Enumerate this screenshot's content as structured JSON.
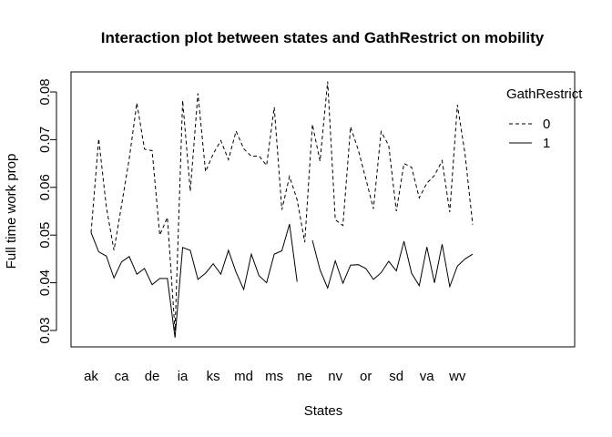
{
  "chart_data": {
    "type": "line",
    "title": "Interaction plot between states and GathRestrict on mobility",
    "xlabel": "States",
    "ylabel": "Full time work prop",
    "x_tick_labels": [
      "ak",
      "ca",
      "de",
      "ia",
      "ks",
      "md",
      "ms",
      "ne",
      "nv",
      "or",
      "sd",
      "va",
      "wv"
    ],
    "y_ticks": [
      0.03,
      0.04,
      0.05,
      0.06,
      0.07,
      0.08
    ],
    "ylim": [
      0.0265,
      0.0835
    ],
    "legend": {
      "title": "GathRestrict",
      "placement": "top-right",
      "entries": [
        "0",
        "1"
      ]
    },
    "series": [
      {
        "name": "0",
        "line_style": "dashed",
        "values": [
          0.0505,
          0.0702,
          0.0559,
          0.0468,
          0.0563,
          0.066,
          0.0777,
          0.068,
          0.0677,
          0.05,
          0.0537,
          0.03,
          0.0782,
          0.0592,
          0.0797,
          0.0633,
          0.067,
          0.0698,
          0.0658,
          0.0718,
          0.0681,
          0.0665,
          0.0666,
          0.0646,
          0.0768,
          0.0553,
          0.0623,
          0.0574,
          0.0485,
          0.0732,
          0.0655,
          0.0822,
          0.0532,
          0.052,
          0.0727,
          0.0679,
          0.0618,
          0.0555,
          0.0717,
          0.0688,
          0.055,
          0.065,
          0.0642,
          0.0578,
          0.0609,
          0.0625,
          0.0656,
          0.0548,
          0.0773,
          0.067,
          0.0522
        ]
      },
      {
        "name": "1",
        "line_style": "solid",
        "values": [
          0.0505,
          0.0465,
          0.0456,
          0.041,
          0.0444,
          0.0455,
          0.0418,
          0.043,
          0.0396,
          0.0409,
          0.0409,
          0.0285,
          0.0474,
          0.0468,
          0.0407,
          0.042,
          0.044,
          0.0418,
          0.0468,
          0.0422,
          0.0386,
          0.046,
          0.0415,
          0.04,
          0.046,
          0.0467,
          0.0523,
          0.0402,
          null,
          0.0489,
          0.0427,
          0.0389,
          0.0446,
          0.0399,
          0.0437,
          0.0438,
          0.043,
          0.0407,
          0.0421,
          0.0445,
          0.0425,
          0.0487,
          0.042,
          0.0394,
          0.0475,
          0.04,
          0.0481,
          0.0392,
          0.0435,
          0.045,
          0.046
        ]
      }
    ]
  }
}
